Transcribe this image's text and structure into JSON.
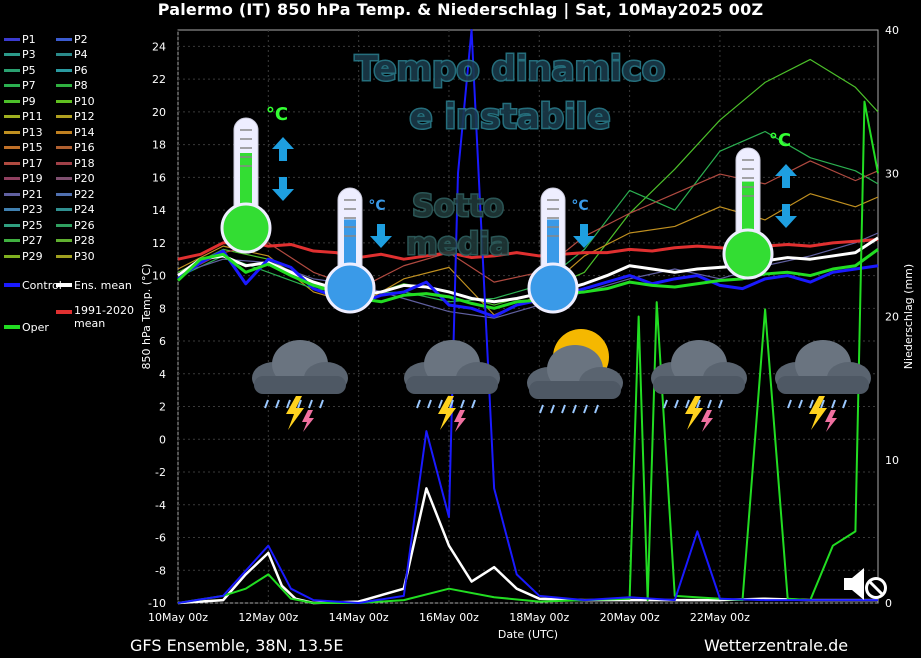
{
  "title": "Palermo  (IT)  850 hPa Temp. & Niederschlag | Sat, 10May2025 00Z",
  "footer": {
    "source": "GFS Ensemble, 38N, 13.5E",
    "site": "Wetterzentrale.de"
  },
  "legend": {
    "items": [
      {
        "label": "P1",
        "color": "#3b3bd0"
      },
      {
        "label": "P2",
        "color": "#3b5bd0"
      },
      {
        "label": "P3",
        "color": "#2b9a8a"
      },
      {
        "label": "P4",
        "color": "#2a8a8a"
      },
      {
        "label": "P5",
        "color": "#2aa070"
      },
      {
        "label": "P6",
        "color": "#2a9aa0"
      },
      {
        "label": "P7",
        "color": "#2bb050"
      },
      {
        "label": "P8",
        "color": "#30b040"
      },
      {
        "label": "P9",
        "color": "#4cc02a"
      },
      {
        "label": "P10",
        "color": "#60c020"
      },
      {
        "label": "P11",
        "color": "#a0b020"
      },
      {
        "label": "P12",
        "color": "#b0a020"
      },
      {
        "label": "P13",
        "color": "#c09020"
      },
      {
        "label": "P14",
        "color": "#c08020"
      },
      {
        "label": "P15",
        "color": "#c07028"
      },
      {
        "label": "P16",
        "color": "#b06030"
      },
      {
        "label": "P17",
        "color": "#b04a40"
      },
      {
        "label": "P18",
        "color": "#a04048"
      },
      {
        "label": "P19",
        "color": "#904060"
      },
      {
        "label": "P20",
        "color": "#805070"
      },
      {
        "label": "P21",
        "color": "#6060a0"
      },
      {
        "label": "P22",
        "color": "#5070b0"
      },
      {
        "label": "P23",
        "color": "#4080b0"
      },
      {
        "label": "P24",
        "color": "#309090"
      },
      {
        "label": "P25",
        "color": "#30a080"
      },
      {
        "label": "P26",
        "color": "#30a060"
      },
      {
        "label": "P27",
        "color": "#40b040"
      },
      {
        "label": "P28",
        "color": "#60b030"
      },
      {
        "label": "P29",
        "color": "#80b020"
      },
      {
        "label": "P30",
        "color": "#a0a020"
      }
    ],
    "control": {
      "label": "Control",
      "color": "#1a1aff"
    },
    "ens_mean": {
      "label": "Ens. mean",
      "color": "#ffffff"
    },
    "climate": {
      "label": "1991-2020\nmean",
      "color": "#e03030"
    },
    "oper": {
      "label": "Oper",
      "color": "#22dd22"
    }
  },
  "overlay": {
    "headline_line1": "Tempo dinamico",
    "headline_line2": "e instabile",
    "sub_line1": "Sotto",
    "sub_line2": "media",
    "unit": "°C"
  },
  "chart_data": {
    "type": "line",
    "xlabel": "Date (UTC)",
    "ylabel": "850 hPa Temp. (°C)",
    "y2label": "Niederschlag (mm)",
    "ylim": [
      -10,
      25
    ],
    "y2lim": [
      0,
      40
    ],
    "xlim": [
      0,
      15.5
    ],
    "x_ticks": [
      {
        "x": 0,
        "label": "10May 00z"
      },
      {
        "x": 2,
        "label": "12May 00z"
      },
      {
        "x": 4,
        "label": "14May 00z"
      },
      {
        "x": 6,
        "label": "16May 00z"
      },
      {
        "x": 8,
        "label": "18May 00z"
      },
      {
        "x": 10,
        "label": "20May 00z"
      },
      {
        "x": 12,
        "label": "22May 00z"
      }
    ],
    "y_ticks": [
      -10,
      -8,
      -6,
      -4,
      -2,
      0,
      2,
      4,
      6,
      8,
      10,
      12,
      14,
      16,
      18,
      20,
      22,
      24
    ],
    "y2_ticks": [
      0,
      10,
      20,
      30,
      40
    ],
    "grid": true,
    "temperature_series": [
      {
        "name": "1991-2020 mean",
        "color": "#e03030",
        "x": [
          0,
          0.5,
          1,
          1.5,
          2,
          2.5,
          3,
          3.5,
          4,
          4.5,
          5,
          5.5,
          6,
          6.5,
          7,
          7.5,
          8,
          8.5,
          9,
          9.5,
          10,
          10.5,
          11,
          11.5,
          12,
          12.5,
          13,
          13.5,
          14,
          14.5,
          15,
          15.5
        ],
        "y": [
          11.0,
          11.3,
          12.0,
          12.1,
          11.8,
          11.9,
          11.5,
          11.4,
          11.1,
          11.3,
          11.0,
          11.2,
          11.4,
          11.1,
          11.2,
          11.4,
          11.2,
          11.3,
          11.4,
          11.4,
          11.6,
          11.5,
          11.7,
          11.8,
          11.7,
          11.6,
          11.8,
          11.9,
          11.8,
          12.0,
          12.1,
          12.2
        ]
      },
      {
        "name": "Ens. mean",
        "color": "#ffffff",
        "x": [
          0,
          0.5,
          1,
          1.5,
          2,
          2.5,
          3,
          3.5,
          4,
          4.5,
          5,
          5.5,
          6,
          6.5,
          7,
          7.5,
          8,
          8.5,
          9,
          9.5,
          10,
          10.5,
          11,
          11.5,
          12,
          12.5,
          13,
          13.5,
          14,
          14.5,
          15,
          15.5
        ],
        "y": [
          10.0,
          11.0,
          11.2,
          10.6,
          10.8,
          10.2,
          9.6,
          9.2,
          8.8,
          9.0,
          9.4,
          9.3,
          9.0,
          8.6,
          8.4,
          8.6,
          8.9,
          9.1,
          9.5,
          10.0,
          10.6,
          10.4,
          10.2,
          10.4,
          10.5,
          10.6,
          10.9,
          11.1,
          11.0,
          11.2,
          11.4,
          12.3
        ]
      },
      {
        "name": "Control",
        "color": "#1a1aff",
        "x": [
          0,
          0.5,
          1,
          1.5,
          2,
          2.5,
          3,
          3.5,
          4,
          4.5,
          5,
          5.5,
          6,
          6.5,
          7,
          7.5,
          8,
          8.5,
          9,
          9.5,
          10,
          10.5,
          11,
          11.5,
          12,
          12.5,
          13,
          13.5,
          14,
          14.5,
          15,
          15.5
        ],
        "y": [
          9.8,
          10.8,
          11.5,
          9.5,
          11.0,
          10.5,
          9.2,
          8.7,
          8.3,
          8.8,
          9.0,
          9.6,
          8.2,
          8.0,
          7.5,
          8.2,
          8.5,
          8.8,
          9.2,
          9.6,
          10.0,
          9.5,
          9.8,
          10.0,
          9.4,
          9.2,
          9.8,
          10.0,
          9.6,
          10.2,
          10.4,
          10.6
        ]
      },
      {
        "name": "Oper",
        "color": "#22dd22",
        "x": [
          0,
          0.5,
          1,
          1.5,
          2,
          2.5,
          3,
          3.5,
          4,
          4.5,
          5,
          5.5,
          6,
          6.5,
          7,
          7.5,
          8,
          8.5,
          9,
          9.5,
          10,
          10.5,
          11,
          11.5,
          12,
          12.5,
          13,
          13.5,
          14,
          14.5,
          15,
          15.5
        ],
        "y": [
          9.7,
          11.0,
          11.3,
          10.2,
          10.7,
          10.0,
          9.4,
          9.0,
          8.6,
          8.4,
          8.8,
          8.9,
          8.7,
          8.3,
          8.0,
          8.4,
          8.5,
          8.9,
          9.0,
          9.2,
          9.6,
          9.4,
          9.3,
          9.5,
          9.7,
          9.8,
          10.1,
          10.2,
          10.0,
          10.4,
          10.6,
          11.6
        ]
      },
      {
        "name": "P9",
        "color": "#4cc02a",
        "x": [
          0,
          1,
          2,
          3,
          4,
          5,
          6,
          7,
          8,
          9,
          10,
          11,
          12,
          13,
          14,
          15,
          15.5
        ],
        "y": [
          10.2,
          11.6,
          11.0,
          9.5,
          8.6,
          9.5,
          9.0,
          8.2,
          9.0,
          10.2,
          13.8,
          16.5,
          19.5,
          21.8,
          23.2,
          21.5,
          20.0
        ]
      },
      {
        "name": "P13",
        "color": "#c09020",
        "x": [
          0,
          1,
          2,
          3,
          4,
          5,
          6,
          7,
          8,
          9,
          10,
          11,
          12,
          13,
          14,
          15,
          15.5
        ],
        "y": [
          10.4,
          11.8,
          11.2,
          9.0,
          8.2,
          9.8,
          10.5,
          7.6,
          8.8,
          11.2,
          12.6,
          13.0,
          14.2,
          13.4,
          15.0,
          14.2,
          14.8
        ]
      },
      {
        "name": "P7",
        "color": "#2bb050",
        "x": [
          0,
          1,
          2,
          3,
          4,
          5,
          6,
          7,
          8,
          9,
          10,
          11,
          12,
          13,
          14,
          15,
          15.5
        ],
        "y": [
          9.9,
          11.2,
          10.2,
          9.2,
          8.9,
          9.0,
          8.4,
          8.6,
          9.4,
          11.6,
          15.2,
          14.0,
          17.6,
          18.8,
          17.2,
          16.4,
          15.6
        ]
      },
      {
        "name": "P21",
        "color": "#6060a0",
        "x": [
          0,
          1,
          2,
          3,
          4,
          5,
          6,
          7,
          8,
          9,
          10,
          11,
          12,
          13,
          14,
          15,
          15.5
        ],
        "y": [
          10.1,
          11.0,
          10.8,
          9.8,
          9.4,
          8.6,
          7.8,
          7.4,
          8.2,
          9.0,
          9.8,
          10.4,
          9.8,
          10.6,
          11.2,
          12.0,
          12.6
        ]
      },
      {
        "name": "P17",
        "color": "#b04a40",
        "x": [
          0,
          1,
          2,
          3,
          4,
          5,
          6,
          7,
          8,
          9,
          10,
          11,
          12,
          13,
          14,
          15,
          15.5
        ],
        "y": [
          10.0,
          11.4,
          12.0,
          10.2,
          9.2,
          10.6,
          11.4,
          9.6,
          10.2,
          12.4,
          13.8,
          15.0,
          16.2,
          15.6,
          17.0,
          15.8,
          16.4
        ]
      }
    ],
    "precipitation_series": [
      {
        "name": "Ens. mean",
        "color": "#ffffff",
        "x": [
          0,
          1,
          1.5,
          2,
          2.3,
          2.6,
          3,
          4,
          5,
          5.5,
          6,
          6.5,
          7,
          7.5,
          8,
          9,
          10,
          11,
          12,
          13,
          14,
          15,
          15.5
        ],
        "y": [
          0,
          0.2,
          2.0,
          3.5,
          1.2,
          0.3,
          0,
          0.1,
          1.0,
          8.0,
          4.0,
          1.5,
          2.5,
          1.0,
          0.3,
          0.2,
          0.2,
          0.2,
          0.2,
          0.3,
          0.2,
          0.2,
          0.2
        ]
      },
      {
        "name": "Oper",
        "color": "#22dd22",
        "x": [
          0,
          1,
          1.5,
          2,
          2.5,
          3,
          4,
          5,
          6,
          7,
          8,
          9,
          10,
          10.2,
          10.4,
          10.6,
          11,
          12,
          12.5,
          13,
          13.5,
          14,
          14.5,
          15,
          15.2,
          15.5
        ],
        "y": [
          0,
          0.5,
          1.0,
          2.0,
          0.3,
          0,
          0,
          0.2,
          1.0,
          0.4,
          0.1,
          0.2,
          0.3,
          20.0,
          0.2,
          21.0,
          0.5,
          0.3,
          0.2,
          20.5,
          0.3,
          0.2,
          4.0,
          5.0,
          35.0,
          30.0
        ]
      },
      {
        "name": "Control",
        "color": "#1a1aff",
        "x": [
          0,
          1,
          2,
          2.5,
          3,
          4,
          5,
          5.5,
          6,
          6.2,
          6.5,
          7,
          7.5,
          8,
          9,
          10,
          11,
          11.5,
          12,
          13,
          14,
          15,
          15.5
        ],
        "y": [
          0,
          0.5,
          4.0,
          1.0,
          0.2,
          0,
          0.5,
          12.0,
          6.0,
          30.0,
          40.0,
          8.0,
          2.0,
          0.5,
          0.2,
          0.4,
          0.2,
          5.0,
          0.3,
          0.2,
          0.2,
          0.2,
          0.2
        ]
      }
    ]
  }
}
